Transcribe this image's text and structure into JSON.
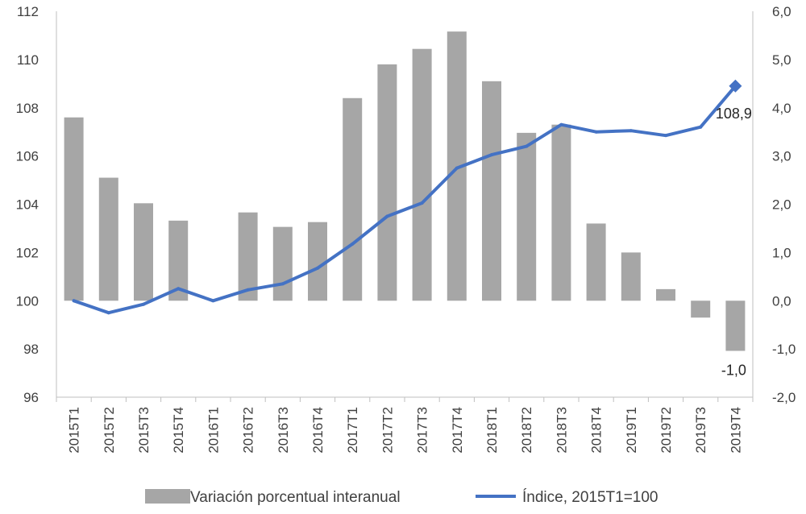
{
  "chart_data": {
    "type": "bar+line",
    "categories": [
      "2015T1",
      "2015T2",
      "2015T3",
      "2015T4",
      "2016T1",
      "2016T2",
      "2016T3",
      "2016T4",
      "2017T1",
      "2017T2",
      "2017T3",
      "2017T4",
      "2018T1",
      "2018T2",
      "2018T3",
      "2018T4",
      "2019T1",
      "2019T2",
      "2019T3",
      "2019T4"
    ],
    "series": [
      {
        "name": "Variación porcentual interanual",
        "type": "bar",
        "axis": "right",
        "color": "#a6a6a6",
        "values": [
          3.8,
          2.55,
          2.02,
          1.66,
          0.0,
          1.83,
          1.53,
          1.63,
          4.2,
          4.9,
          5.22,
          5.58,
          4.55,
          3.48,
          3.65,
          1.6,
          1.0,
          0.24,
          -0.35,
          -1.04
        ]
      },
      {
        "name": "Índice, 2015T1=100",
        "type": "line",
        "axis": "left",
        "color": "#4472c4",
        "values": [
          100.0,
          99.5,
          99.85,
          100.5,
          100.0,
          100.45,
          100.7,
          101.35,
          102.35,
          103.5,
          104.05,
          105.5,
          106.05,
          106.4,
          107.3,
          107.0,
          107.05,
          106.85,
          107.2,
          108.9
        ]
      }
    ],
    "yleft": {
      "ylim": [
        96,
        112
      ],
      "ticks": [
        "96",
        "98",
        "100",
        "102",
        "104",
        "106",
        "108",
        "110",
        "112"
      ]
    },
    "yright": {
      "ylim": [
        -2,
        6
      ],
      "ticks": [
        "-2,0",
        "-1,0",
        "0,0",
        "1,0",
        "2,0",
        "3,0",
        "4,0",
        "5,0",
        "6,0"
      ]
    },
    "annotations": [
      {
        "text": "108,9",
        "series": "Índice, 2015T1=100",
        "category": "2019T4"
      },
      {
        "text": "-1,0",
        "series": "Variación porcentual interanual",
        "category": "2019T4"
      }
    ],
    "grid": false,
    "legend_position": "bottom"
  }
}
